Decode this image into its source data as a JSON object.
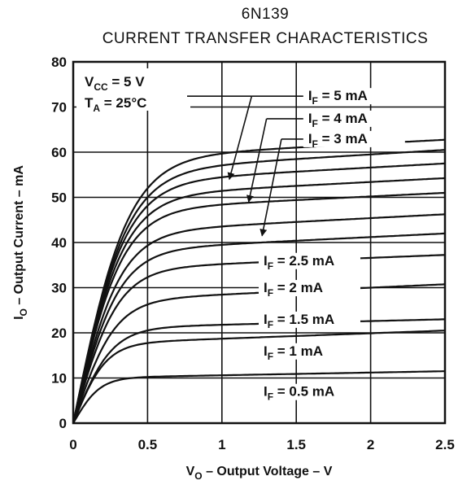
{
  "chart_data": {
    "type": "line",
    "title": "6N139",
    "subtitle": "CURRENT TRANSFER CHARACTERISTICS",
    "xlabel": {
      "main": "V",
      "sub": "O",
      "rest": " – Output Voltage – V"
    },
    "ylabel": {
      "main": "I",
      "sub": "O",
      "rest": " – Output Current – mA"
    },
    "xlim": [
      0,
      2.5
    ],
    "ylim": [
      0,
      80
    ],
    "x_ticks": [
      "0",
      "0.5",
      "1",
      "1.5",
      "2",
      "2.5"
    ],
    "y_ticks": [
      "0",
      "10",
      "20",
      "30",
      "40",
      "50",
      "60",
      "70",
      "80"
    ],
    "grid": true,
    "conditions": [
      {
        "main": "V",
        "sub": "CC",
        "rest": " = 5 V"
      },
      {
        "main": "T",
        "sub": "A",
        "rest": " = 25°C"
      }
    ],
    "series": [
      {
        "name": "I_F = 0.5 mA",
        "sat": 10,
        "knee": 0.18,
        "slope": 0.6
      },
      {
        "name": "",
        "sat": 17.5,
        "knee": 0.22,
        "slope": 1.2
      },
      {
        "name": "I_F = 1 mA",
        "sat": 21,
        "knee": 0.26,
        "slope": 0.8
      },
      {
        "name": "",
        "sat": 27,
        "knee": 0.28,
        "slope": 1.5
      },
      {
        "name": "I_F = 1.5 mA",
        "sat": 34,
        "knee": 0.3,
        "slope": 1.3
      },
      {
        "name": "",
        "sat": 38,
        "knee": 0.31,
        "slope": 1.6
      },
      {
        "name": "I_F = 2 mA",
        "sat": 42,
        "knee": 0.32,
        "slope": 1.7
      },
      {
        "name": "I_F = 2.5 mA",
        "sat": 47,
        "knee": 0.33,
        "slope": 1.6
      },
      {
        "name": "",
        "sat": 50,
        "knee": 0.34,
        "slope": 1.7
      },
      {
        "name": "I_F = 3 mA",
        "sat": 53,
        "knee": 0.35,
        "slope": 1.8
      },
      {
        "name": "I_F = 4 mA",
        "sat": 55.5,
        "knee": 0.36,
        "slope": 2.0
      },
      {
        "name": "I_F = 5 mA",
        "sat": 58.5,
        "knee": 0.37,
        "slope": 1.7
      }
    ],
    "annotations": [
      {
        "main": "I",
        "sub": "F",
        "rest": " = 5 mA",
        "target": [
          1.05,
          54
        ],
        "anchor": [
          1.2,
          71.5
        ],
        "text_at": [
          1.58,
          71.5
        ]
      },
      {
        "main": "I",
        "sub": "F",
        "rest": " = 4 mA",
        "target": [
          1.18,
          49
        ],
        "anchor": [
          1.3,
          66.5
        ],
        "text_at": [
          1.58,
          66.5
        ]
      },
      {
        "main": "I",
        "sub": "F",
        "rest": " = 3 mA",
        "target": [
          1.27,
          41.5
        ],
        "anchor": [
          1.4,
          62
        ],
        "text_at": [
          1.58,
          62
        ]
      },
      {
        "main": "I",
        "sub": "F",
        "rest": " = 2.5 mA",
        "target": null,
        "anchor": null,
        "text_at": [
          1.28,
          35
        ]
      },
      {
        "main": "I",
        "sub": "F",
        "rest": " = 2 mA",
        "target": null,
        "anchor": null,
        "text_at": [
          1.28,
          29
        ]
      },
      {
        "main": "I",
        "sub": "F",
        "rest": " = 1.5 mA",
        "target": null,
        "anchor": null,
        "text_at": [
          1.28,
          22
        ]
      },
      {
        "main": "I",
        "sub": "F",
        "rest": " = 1 mA",
        "target": null,
        "anchor": null,
        "text_at": [
          1.28,
          15
        ]
      },
      {
        "main": "I",
        "sub": "F",
        "rest": " = 0.5 mA",
        "target": null,
        "anchor": null,
        "text_at": [
          1.28,
          6
        ]
      }
    ]
  }
}
